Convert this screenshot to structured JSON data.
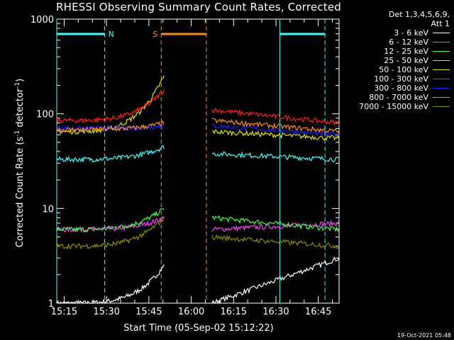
{
  "chart_data": {
    "type": "line",
    "title": "RHESSI Observing Summary Count Rates, Corrected",
    "ylabel": "Corrected Count Rate (s^-1 detector^-1)",
    "ylabel_main": "Corrected Count Rate (s",
    "ylabel_sup1": "-1",
    "ylabel_mid": " detector",
    "ylabel_sup2": "-1",
    "ylabel_end": ")",
    "xlabel": "Start Time (05-Sep-02 15:12:22)",
    "y_scale": "log",
    "ylim": [
      1,
      1000
    ],
    "xlim_minutes": [
      0,
      100
    ],
    "x_ticks": [
      "15:15",
      "15:30",
      "15:45",
      "16:00",
      "16:15",
      "16:30",
      "16:45"
    ],
    "y_ticks": [
      "1",
      "10",
      "100",
      "1000"
    ],
    "legend_header": [
      "Det 1,3,4,5,6,9,",
      "Att 1"
    ],
    "legend_position": "right",
    "series": [
      {
        "name": "3 - 6 keV",
        "color": "#ffffff"
      },
      {
        "name": "6 - 12 keV",
        "color": "#ff40ff"
      },
      {
        "name": "12 - 25 keV",
        "color": "#40ff40"
      },
      {
        "name": "25 - 50 keV",
        "color": "#40ffff"
      },
      {
        "name": "50 - 100 keV",
        "color": "#e0e000"
      },
      {
        "name": "100 - 300 keV",
        "color": "#ff2020"
      },
      {
        "name": "300 - 800 keV",
        "color": "#2020ff"
      },
      {
        "name": "800 - 7000 keV",
        "color": "#ff8c1a"
      },
      {
        "name": "7000 - 15000 keV",
        "color": "#8c8c00"
      }
    ],
    "series_levels": [
      {
        "pre": [
          1,
          2.5
        ],
        "post": [
          1,
          3
        ]
      },
      {
        "pre": [
          6,
          8
        ],
        "post": [
          6,
          7
        ]
      },
      {
        "pre": [
          6,
          10
        ],
        "post": [
          8,
          6
        ]
      },
      {
        "pre": [
          33,
          45
        ],
        "post": [
          38,
          33
        ]
      },
      {
        "pre": [
          65,
          250
        ],
        "post": [
          65,
          55
        ]
      },
      {
        "pre": [
          85,
          180
        ],
        "post": [
          110,
          80
        ]
      },
      {
        "pre": [
          70,
          75
        ],
        "post": [
          75,
          60
        ]
      },
      {
        "pre": [
          68,
          80
        ],
        "post": [
          85,
          65
        ]
      },
      {
        "pre": [
          4,
          8
        ],
        "post": [
          5,
          4
        ]
      }
    ],
    "annotations": [
      {
        "label": "N",
        "color": "#40ffff",
        "span_minutes": [
          0,
          17
        ]
      },
      {
        "label": "S",
        "color": "#ff8c1a",
        "span_minutes": [
          37,
          53
        ]
      },
      {
        "label": "",
        "color": "#40ffff",
        "span_minutes": [
          79,
          95
        ]
      }
    ]
  },
  "timestamp": "19-Oct-2021 05:48"
}
